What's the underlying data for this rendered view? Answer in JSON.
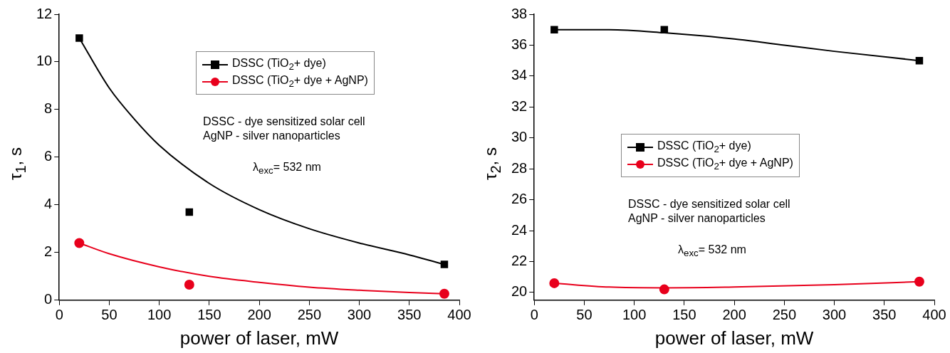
{
  "chart_data": [
    {
      "type": "scatter",
      "xlabel": "power of laser, mW",
      "ylabel": "τ$_{1}$, s",
      "xlim": [
        0,
        400
      ],
      "xticks": [
        0,
        50,
        100,
        150,
        200,
        250,
        300,
        350,
        400
      ],
      "ylim": [
        0,
        12
      ],
      "yticks": [
        0,
        2,
        4,
        6,
        8,
        10,
        12
      ],
      "grid": false,
      "legend": "top right",
      "annotations": [
        "DSSC - dye sensitized solar cell",
        "AgNP - silver nanoparticles",
        "λ$_{exc}$= 532 nm"
      ],
      "series": [
        {
          "name": "DSSC (TiO$_{2}$+ dye)",
          "type": "scatter",
          "marker": "square",
          "color": "#000000",
          "x": [
            20,
            130,
            385
          ],
          "values": [
            11,
            3.7,
            1.5
          ]
        },
        {
          "name": "DSSC (TiO$_{2}$+ dye + AgNP)",
          "type": "scatter",
          "marker": "circle",
          "color": "#e8001c",
          "x": [
            20,
            130,
            385
          ],
          "values": [
            2.4,
            0.65,
            0.27
          ]
        },
        {
          "type": "line",
          "marker": "none",
          "color": "#000000",
          "x": [
            20,
            50,
            75,
            100,
            150,
            200,
            250,
            300,
            350,
            385
          ],
          "values": [
            11,
            8.9,
            7.6,
            6.5,
            4.9,
            3.8,
            3.0,
            2.4,
            1.9,
            1.5
          ]
        },
        {
          "type": "line",
          "marker": "none",
          "color": "#e8001c",
          "x": [
            20,
            50,
            100,
            150,
            200,
            250,
            300,
            350,
            385
          ],
          "values": [
            2.4,
            1.95,
            1.4,
            1.0,
            0.75,
            0.55,
            0.42,
            0.32,
            0.27
          ]
        }
      ]
    },
    {
      "type": "scatter",
      "xlabel": "power of laser, mW",
      "ylabel": "τ$_{2}$, s",
      "xlim": [
        0,
        400
      ],
      "xticks": [
        0,
        50,
        100,
        150,
        200,
        250,
        300,
        350,
        400
      ],
      "ylim": [
        19.5,
        38
      ],
      "yticks": [
        20,
        22,
        24,
        26,
        28,
        30,
        32,
        34,
        36,
        38
      ],
      "grid": false,
      "legend": "center",
      "annotations": [
        "DSSC - dye sensitized solar cell",
        "AgNP - silver nanoparticles",
        "λ$_{exc}$= 532 nm"
      ],
      "series": [
        {
          "name": "DSSC (TiO$_{2}$+ dye)",
          "type": "scatter",
          "marker": "square",
          "color": "#000000",
          "x": [
            20,
            130,
            385
          ],
          "values": [
            37,
            37,
            35
          ]
        },
        {
          "name": "DSSC (TiO$_{2}$+ dye + AgNP)",
          "type": "scatter",
          "marker": "circle",
          "color": "#e8001c",
          "x": [
            20,
            130,
            385
          ],
          "values": [
            20.6,
            20.2,
            20.7
          ]
        },
        {
          "type": "line",
          "marker": "none",
          "color": "#000000",
          "x": [
            20,
            75,
            130,
            200,
            250,
            300,
            385
          ],
          "values": [
            37,
            37,
            36.8,
            36.4,
            36.0,
            35.6,
            35
          ]
        },
        {
          "type": "line",
          "marker": "none",
          "color": "#e8001c",
          "x": [
            20,
            75,
            130,
            200,
            300,
            385
          ],
          "values": [
            20.6,
            20.35,
            20.3,
            20.35,
            20.5,
            20.7
          ]
        }
      ]
    }
  ]
}
